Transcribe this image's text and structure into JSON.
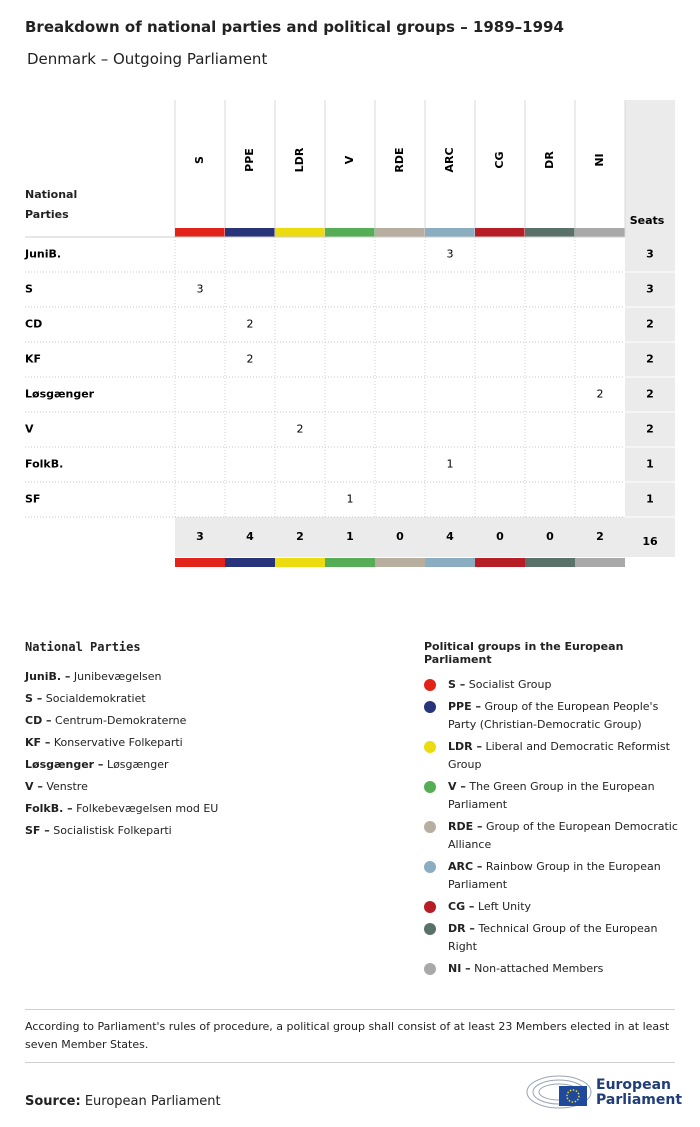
{
  "header": {
    "title": "Breakdown of national parties and political groups – 1989–1994",
    "subtitle": "Denmark – Outgoing Parliament"
  },
  "table": {
    "corner": "National Parties",
    "seats_label": "Seats",
    "groups": [
      {
        "code": "S",
        "color": "#e2231a"
      },
      {
        "code": "PPE",
        "color": "#28337a"
      },
      {
        "code": "LDR",
        "color": "#ecdb0e"
      },
      {
        "code": "V",
        "color": "#55ae55"
      },
      {
        "code": "RDE",
        "color": "#b8ae9f"
      },
      {
        "code": "ARC",
        "color": "#8badc2"
      },
      {
        "code": "CG",
        "color": "#b71d24"
      },
      {
        "code": "DR",
        "color": "#5a716a"
      },
      {
        "code": "NI",
        "color": "#a9a9a9"
      }
    ],
    "rows": [
      {
        "party": "JuniB.",
        "cells": [
          null,
          null,
          null,
          null,
          null,
          3,
          null,
          null,
          null
        ],
        "seats": 3
      },
      {
        "party": "S",
        "cells": [
          3,
          null,
          null,
          null,
          null,
          null,
          null,
          null,
          null
        ],
        "seats": 3
      },
      {
        "party": "CD",
        "cells": [
          null,
          2,
          null,
          null,
          null,
          null,
          null,
          null,
          null
        ],
        "seats": 2
      },
      {
        "party": "KF",
        "cells": [
          null,
          2,
          null,
          null,
          null,
          null,
          null,
          null,
          null
        ],
        "seats": 2
      },
      {
        "party": "Løsgænger",
        "cells": [
          null,
          null,
          null,
          null,
          null,
          null,
          null,
          null,
          2
        ],
        "seats": 2
      },
      {
        "party": "V",
        "cells": [
          null,
          null,
          2,
          null,
          null,
          null,
          null,
          null,
          null
        ],
        "seats": 2
      },
      {
        "party": "FolkB.",
        "cells": [
          null,
          null,
          null,
          null,
          null,
          1,
          null,
          null,
          null
        ],
        "seats": 1
      },
      {
        "party": "SF",
        "cells": [
          null,
          null,
          null,
          1,
          null,
          null,
          null,
          null,
          null
        ],
        "seats": 1
      }
    ],
    "totals": [
      3,
      4,
      2,
      1,
      0,
      4,
      0,
      0,
      2
    ],
    "total_seats": 16
  },
  "parties_legend": {
    "title": "National Parties",
    "items": [
      {
        "abbr": "JuniB. –",
        "name": "Junibevægelsen"
      },
      {
        "abbr": "S –",
        "name": "Socialdemokratiet"
      },
      {
        "abbr": "CD –",
        "name": "Centrum-Demokraterne"
      },
      {
        "abbr": "KF –",
        "name": "Konservative Folkeparti"
      },
      {
        "abbr": "Løsgænger –",
        "name": "Løsgænger"
      },
      {
        "abbr": "V –",
        "name": "Venstre"
      },
      {
        "abbr": "FolkB. –",
        "name": "Folkebevægelsen mod EU"
      },
      {
        "abbr": "SF –",
        "name": "Socialistisk Folkeparti"
      }
    ]
  },
  "groups_legend": {
    "title": "Political groups in the European Parliament",
    "items": [
      {
        "abbr": "S –",
        "name": "Socialist Group"
      },
      {
        "abbr": "PPE –",
        "name": "Group of the European People's Party (Christian-Democratic Group)"
      },
      {
        "abbr": "LDR –",
        "name": "Liberal and Democratic Reformist Group"
      },
      {
        "abbr": "V –",
        "name": "The Green Group in the European Parliament"
      },
      {
        "abbr": "RDE –",
        "name": "Group of the European Democratic Alliance"
      },
      {
        "abbr": "ARC –",
        "name": "Rainbow Group in the European Parliament"
      },
      {
        "abbr": "CG –",
        "name": "Left Unity"
      },
      {
        "abbr": "DR –",
        "name": "Technical Group of the European Right"
      },
      {
        "abbr": "NI –",
        "name": "Non-attached Members"
      }
    ]
  },
  "note": "According to Parliament's rules of procedure, a political group shall consist of at least 23 Members elected in at least seven Member States.",
  "source": {
    "label": "Source:",
    "text": "European Parliament"
  },
  "logo": "European Parliament"
}
